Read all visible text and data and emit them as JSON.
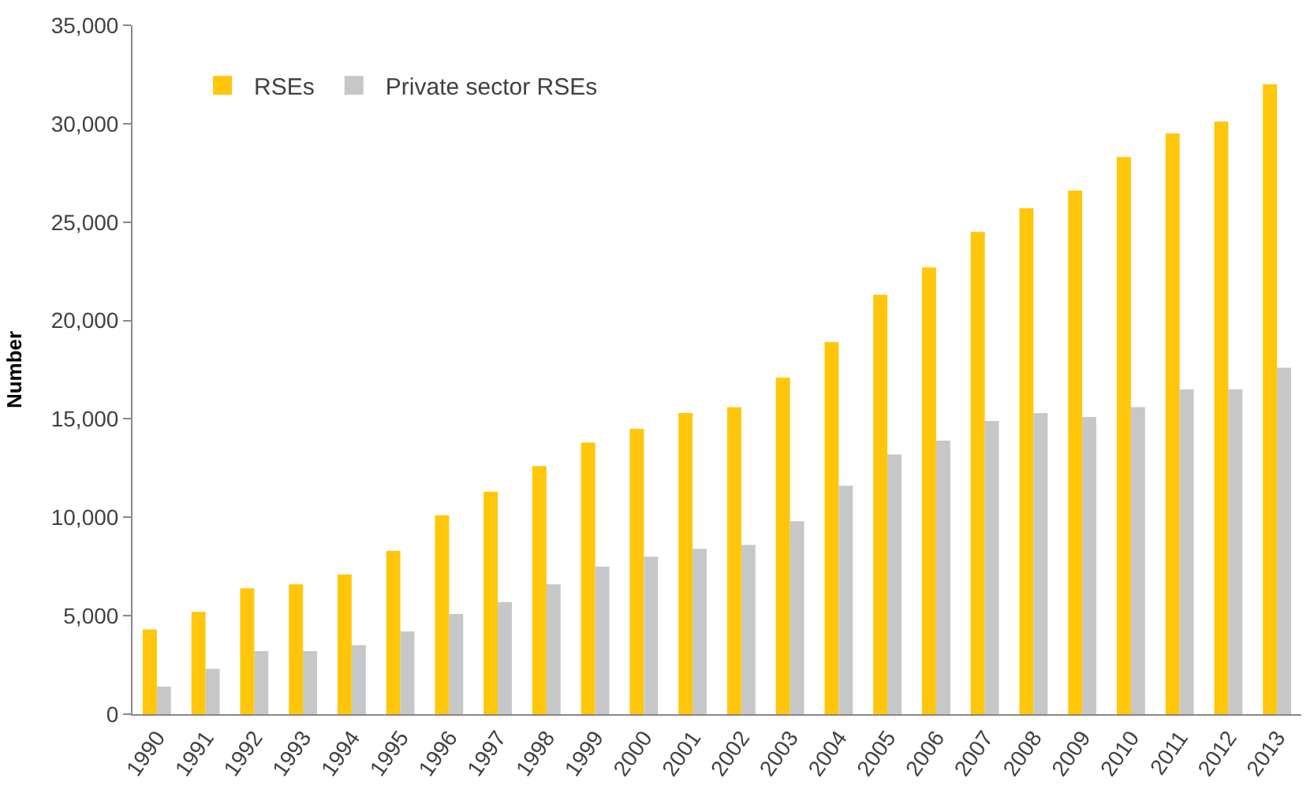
{
  "chart_data": {
    "type": "bar",
    "ylabel": "Number",
    "categories": [
      "1990",
      "1991",
      "1992",
      "1993",
      "1994",
      "1995",
      "1996",
      "1997",
      "1998",
      "1999",
      "2000",
      "2001",
      "2002",
      "2003",
      "2004",
      "2005",
      "2006",
      "2007",
      "2008",
      "2009",
      "2010",
      "2011",
      "2012",
      "2013"
    ],
    "series": [
      {
        "name": "RSEs",
        "color": "#ffc60b",
        "values": [
          4300,
          5200,
          6400,
          6600,
          7100,
          8300,
          10100,
          11300,
          12600,
          13800,
          14500,
          15300,
          15600,
          17100,
          18900,
          21300,
          22700,
          24500,
          25700,
          26600,
          28300,
          29500,
          30100,
          32000
        ]
      },
      {
        "name": "Private sector RSEs",
        "color": "#c6c7c9",
        "values": [
          1400,
          2300,
          3200,
          3200,
          3500,
          4200,
          5100,
          5700,
          6600,
          7500,
          8000,
          8400,
          8600,
          9800,
          11600,
          13200,
          13900,
          14900,
          15300,
          15100,
          15600,
          16500,
          16500,
          17600
        ]
      }
    ],
    "ylim": [
      0,
      35000
    ],
    "yticks": [
      {
        "value": 0,
        "label": "0"
      },
      {
        "value": 5000,
        "label": "5,000"
      },
      {
        "value": 10000,
        "label": "10,000"
      },
      {
        "value": 15000,
        "label": "15,000"
      },
      {
        "value": 20000,
        "label": "20,000"
      },
      {
        "value": 25000,
        "label": "25,000"
      },
      {
        "value": 30000,
        "label": "30,000"
      },
      {
        "value": 35000,
        "label": "35,000"
      }
    ],
    "legend": "top left"
  }
}
